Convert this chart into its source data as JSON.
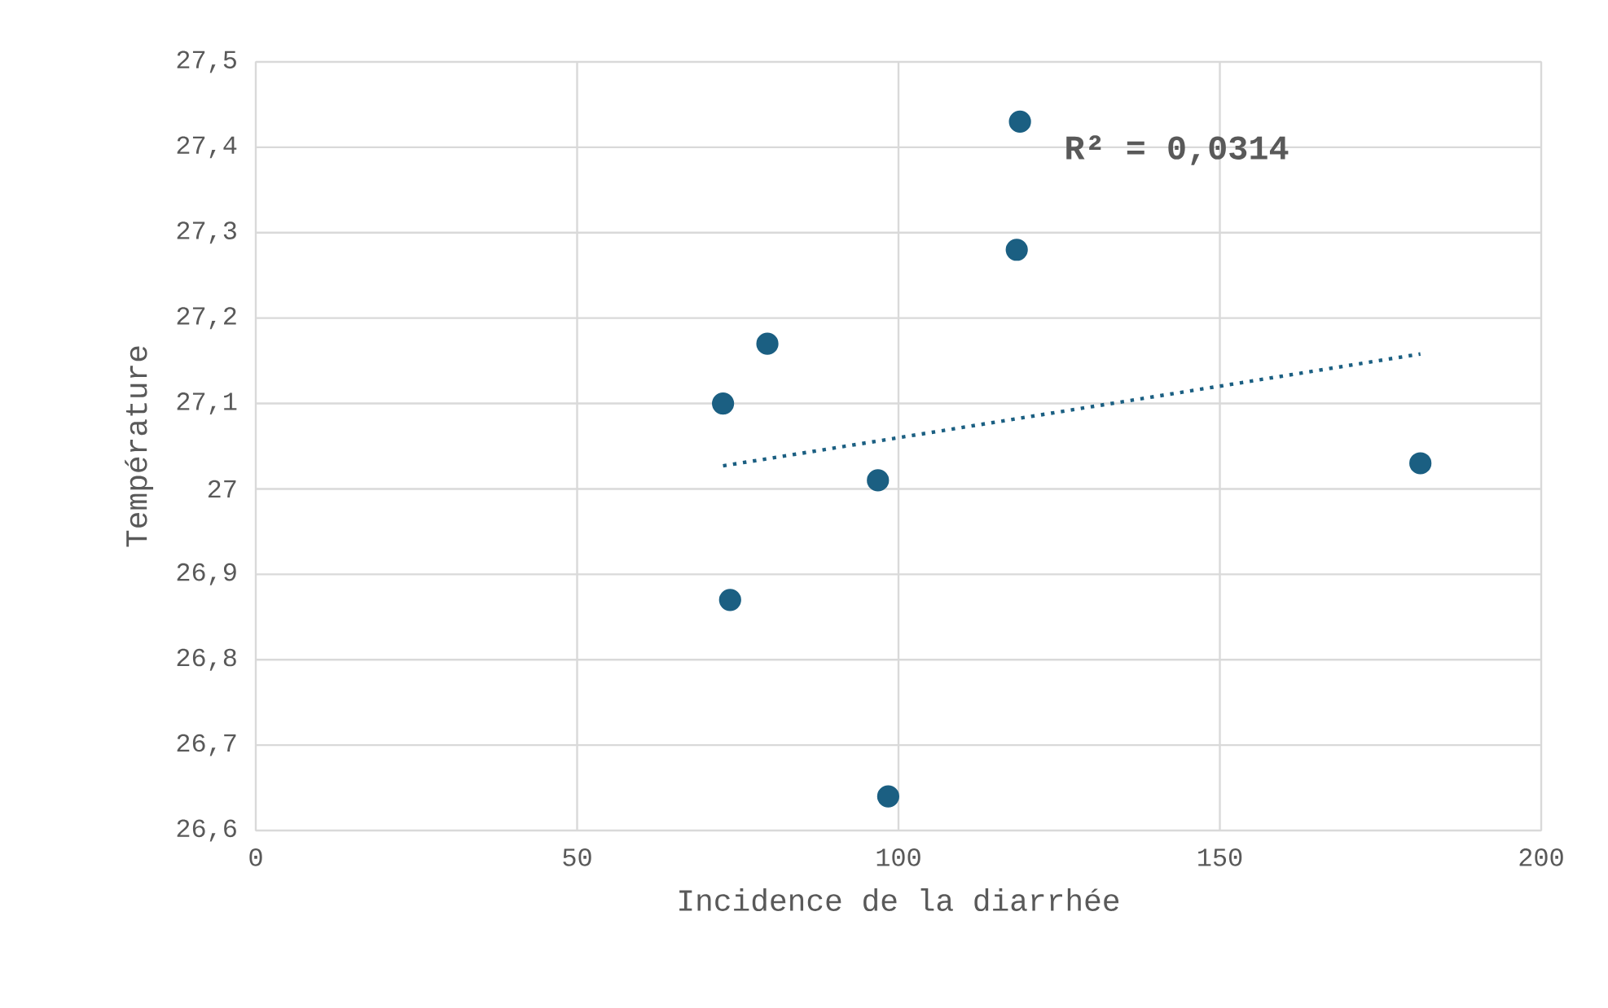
{
  "chart_data": {
    "type": "scatter",
    "xlabel": "Incidence de la diarrhée",
    "ylabel": "Température",
    "series": [
      {
        "color": "#1b5f82",
        "marker": "circle",
        "x": [
          72.7,
          79.6,
          73.8,
          96.8,
          98.4,
          118.4,
          118.9,
          181.2
        ],
        "values": [
          27.1,
          27.17,
          26.87,
          27.01,
          26.64,
          27.28,
          27.43,
          27.03
        ]
      },
      {
        "type": "line",
        "color": "#1b5f82",
        "marker": "none",
        "line_style": "dotted",
        "x": [
          72.7,
          181.2
        ],
        "values": [
          27.027,
          27.158
        ]
      }
    ],
    "xlim": [
      0,
      200
    ],
    "xticks": [
      0,
      50,
      100,
      150,
      200
    ],
    "ylim": [
      26.6,
      27.5
    ],
    "yticks": [
      {
        "value": 26.6,
        "label": "26,6"
      },
      {
        "value": 26.7,
        "label": "26,7"
      },
      {
        "value": 26.8,
        "label": "26,8"
      },
      {
        "value": 26.9,
        "label": "26,9"
      },
      {
        "value": 27,
        "label": "27"
      },
      {
        "value": 27.1,
        "label": "27,1"
      },
      {
        "value": 27.2,
        "label": "27,2"
      },
      {
        "value": 27.3,
        "label": "27,3"
      },
      {
        "value": 27.4,
        "label": "27,4"
      },
      {
        "value": 27.5,
        "label": "27,5"
      }
    ],
    "grid": true,
    "annotations": [
      "**R² = 0,0314**"
    ]
  }
}
